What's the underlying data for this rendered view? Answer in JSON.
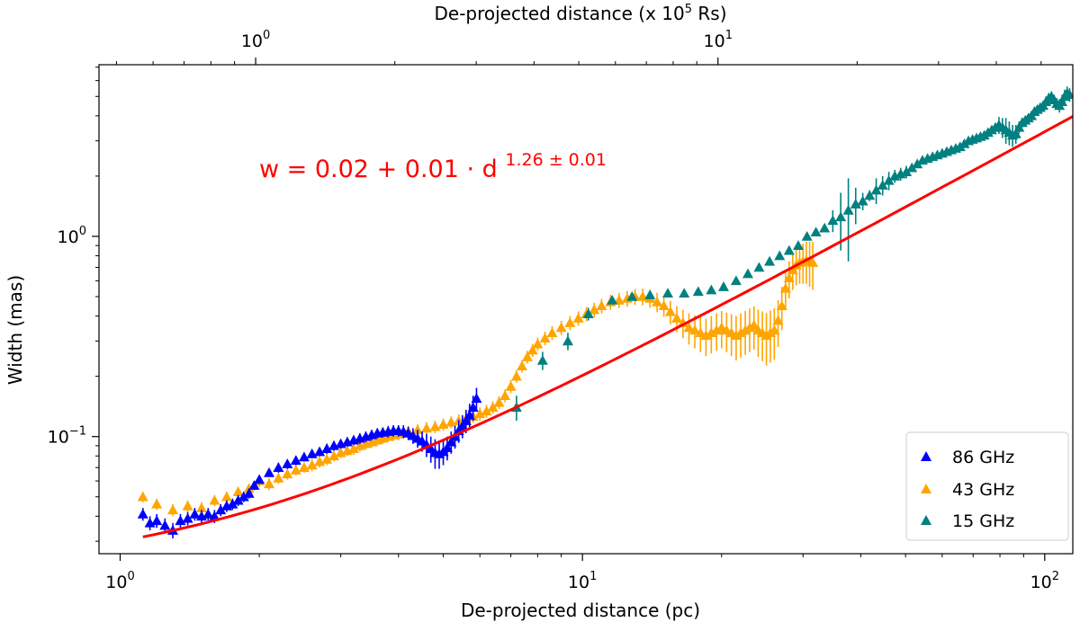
{
  "chart_data": {
    "type": "scatter",
    "xscale": "log",
    "yscale": "log",
    "xlim": [
      0.9,
      115
    ],
    "ylim": [
      0.026,
      7.2
    ],
    "xlabel": "De-projected distance (pc)",
    "ylabel": "Width (mas)",
    "top_axis": {
      "label_prefix": "De-projected distance (x 10",
      "label_sup": "5",
      "label_suffix": " Rs)",
      "ticks": [
        {
          "label": "10",
          "exp": "0",
          "pc": 1.964
        },
        {
          "label": "10",
          "exp": "1",
          "pc": 19.64
        }
      ]
    },
    "x_ticks": [
      {
        "value": 1,
        "label": "10",
        "exp": "0"
      },
      {
        "value": 10,
        "label": "10",
        "exp": "1"
      },
      {
        "value": 100,
        "label": "10",
        "exp": "2"
      }
    ],
    "y_ticks": [
      {
        "value": 0.1,
        "label": "10",
        "exp": "−1"
      },
      {
        "value": 1,
        "label": "10",
        "exp": "0"
      }
    ],
    "equation": {
      "main": "w =  0.02 +  0.01 · d ",
      "exponent": "1.26 ± 0.01"
    },
    "legend": {
      "position": "lower-right",
      "entries": [
        {
          "label": "86 GHz",
          "color": "#0000ff"
        },
        {
          "label": "43 GHz",
          "color": "#ffa500"
        },
        {
          "label": "15 GHz",
          "color": "#008080"
        }
      ]
    },
    "fit": {
      "a": 0.02,
      "b": 0.01,
      "k": 1.26,
      "x_range": [
        1.12,
        115
      ],
      "color": "#ff0000"
    },
    "series": [
      {
        "name": "86 GHz",
        "color": "#0000ff",
        "x": [
          1.12,
          1.16,
          1.2,
          1.25,
          1.3,
          1.35,
          1.4,
          1.45,
          1.5,
          1.55,
          1.6,
          1.65,
          1.7,
          1.75,
          1.8,
          1.85,
          1.9,
          1.95,
          2.0,
          2.1,
          2.2,
          2.3,
          2.4,
          2.5,
          2.6,
          2.7,
          2.8,
          2.9,
          3.0,
          3.1,
          3.2,
          3.3,
          3.4,
          3.5,
          3.6,
          3.7,
          3.8,
          3.9,
          4.0,
          4.1,
          4.2,
          4.3,
          4.4,
          4.5,
          4.6,
          4.7,
          4.8,
          4.9,
          5.0,
          5.1,
          5.2,
          5.3,
          5.4,
          5.5,
          5.6,
          5.7,
          5.8,
          5.9
        ],
        "y": [
          0.041,
          0.037,
          0.038,
          0.036,
          0.034,
          0.038,
          0.039,
          0.041,
          0.04,
          0.041,
          0.04,
          0.043,
          0.045,
          0.046,
          0.048,
          0.05,
          0.052,
          0.057,
          0.061,
          0.066,
          0.07,
          0.073,
          0.076,
          0.079,
          0.082,
          0.084,
          0.087,
          0.09,
          0.092,
          0.094,
          0.096,
          0.098,
          0.1,
          0.102,
          0.104,
          0.105,
          0.106,
          0.107,
          0.107,
          0.106,
          0.104,
          0.101,
          0.098,
          0.095,
          0.091,
          0.087,
          0.083,
          0.082,
          0.084,
          0.088,
          0.094,
          0.1,
          0.107,
          0.113,
          0.12,
          0.128,
          0.14,
          0.155
        ],
        "err": [
          0.003,
          0.003,
          0.003,
          0.003,
          0.003,
          0.003,
          0.003,
          0.003,
          0.003,
          0.003,
          0.003,
          0.003,
          0.003,
          0.003,
          0.003,
          0.003,
          0.003,
          0.003,
          0.003,
          0.003,
          0.004,
          0.004,
          0.004,
          0.004,
          0.004,
          0.004,
          0.005,
          0.005,
          0.005,
          0.005,
          0.005,
          0.006,
          0.006,
          0.006,
          0.006,
          0.006,
          0.007,
          0.007,
          0.007,
          0.008,
          0.008,
          0.009,
          0.01,
          0.011,
          0.012,
          0.013,
          0.014,
          0.013,
          0.012,
          0.012,
          0.012,
          0.013,
          0.014,
          0.015,
          0.016,
          0.018,
          0.02,
          0.02
        ]
      },
      {
        "name": "43 GHz",
        "color": "#ffa500",
        "x": [
          1.12,
          1.2,
          1.3,
          1.4,
          1.5,
          1.6,
          1.7,
          1.8,
          1.9,
          2.0,
          2.1,
          2.2,
          2.3,
          2.4,
          2.5,
          2.6,
          2.7,
          2.8,
          2.9,
          3.0,
          3.1,
          3.2,
          3.3,
          3.4,
          3.5,
          3.6,
          3.7,
          3.8,
          3.9,
          4.0,
          4.2,
          4.4,
          4.6,
          4.8,
          5.0,
          5.2,
          5.4,
          5.6,
          5.8,
          6.0,
          6.2,
          6.4,
          6.6,
          6.8,
          7.0,
          7.2,
          7.4,
          7.6,
          7.8,
          8.0,
          8.3,
          8.6,
          9.0,
          9.4,
          9.8,
          10.2,
          10.6,
          11.0,
          11.5,
          12.0,
          12.5,
          13.0,
          13.5,
          14.0,
          14.5,
          15.0,
          15.5,
          16.0,
          16.5,
          17.0,
          17.5,
          18.0,
          18.5,
          19.0,
          19.5,
          20.0,
          20.5,
          21.0,
          21.5,
          22.0,
          22.5,
          23.0,
          23.5,
          24.0,
          24.5,
          25.0,
          25.5,
          26.0,
          26.5,
          27.0,
          27.5,
          28.0,
          28.5,
          29.0,
          29.5,
          30.0,
          30.5,
          31.0,
          31.5
        ],
        "y": [
          0.05,
          0.046,
          0.043,
          0.045,
          0.044,
          0.048,
          0.05,
          0.053,
          0.055,
          0.06,
          0.058,
          0.062,
          0.065,
          0.068,
          0.07,
          0.072,
          0.075,
          0.077,
          0.08,
          0.083,
          0.085,
          0.087,
          0.09,
          0.092,
          0.094,
          0.096,
          0.098,
          0.1,
          0.102,
          0.103,
          0.106,
          0.108,
          0.11,
          0.112,
          0.115,
          0.118,
          0.12,
          0.123,
          0.126,
          0.13,
          0.134,
          0.14,
          0.148,
          0.16,
          0.178,
          0.2,
          0.225,
          0.25,
          0.27,
          0.29,
          0.31,
          0.33,
          0.35,
          0.37,
          0.39,
          0.41,
          0.43,
          0.45,
          0.47,
          0.48,
          0.49,
          0.5,
          0.5,
          0.49,
          0.47,
          0.45,
          0.42,
          0.39,
          0.37,
          0.35,
          0.34,
          0.33,
          0.32,
          0.33,
          0.34,
          0.35,
          0.34,
          0.33,
          0.32,
          0.33,
          0.34,
          0.35,
          0.36,
          0.34,
          0.33,
          0.32,
          0.33,
          0.34,
          0.38,
          0.45,
          0.55,
          0.62,
          0.68,
          0.72,
          0.74,
          0.75,
          0.76,
          0.75,
          0.74
        ],
        "err": [
          0.003,
          0.003,
          0.003,
          0.003,
          0.003,
          0.003,
          0.003,
          0.003,
          0.003,
          0.004,
          0.004,
          0.004,
          0.004,
          0.004,
          0.004,
          0.005,
          0.005,
          0.005,
          0.005,
          0.005,
          0.005,
          0.006,
          0.006,
          0.006,
          0.006,
          0.006,
          0.006,
          0.006,
          0.007,
          0.007,
          0.007,
          0.007,
          0.008,
          0.008,
          0.008,
          0.008,
          0.009,
          0.009,
          0.009,
          0.01,
          0.01,
          0.01,
          0.011,
          0.012,
          0.013,
          0.014,
          0.016,
          0.018,
          0.02,
          0.022,
          0.024,
          0.026,
          0.028,
          0.03,
          0.032,
          0.034,
          0.036,
          0.038,
          0.04,
          0.042,
          0.044,
          0.046,
          0.048,
          0.05,
          0.052,
          0.054,
          0.056,
          0.058,
          0.06,
          0.062,
          0.064,
          0.066,
          0.068,
          0.07,
          0.072,
          0.074,
          0.076,
          0.078,
          0.08,
          0.082,
          0.084,
          0.086,
          0.088,
          0.09,
          0.092,
          0.094,
          0.096,
          0.098,
          0.1,
          0.11,
          0.12,
          0.13,
          0.14,
          0.15,
          0.16,
          0.17,
          0.18,
          0.19,
          0.2
        ]
      },
      {
        "name": "15 GHz",
        "color": "#008080",
        "x": [
          7.2,
          8.2,
          9.3,
          10.3,
          11.6,
          12.8,
          14.0,
          15.3,
          16.6,
          17.8,
          19.0,
          20.2,
          21.5,
          22.8,
          24.1,
          25.4,
          26.7,
          28.0,
          29.3,
          30.6,
          32.0,
          33.4,
          34.8,
          36.2,
          37.6,
          39.0,
          40.4,
          41.8,
          43.2,
          44.6,
          46.0,
          47.4,
          48.8,
          50.2,
          51.6,
          53.0,
          54.4,
          55.8,
          57.2,
          58.6,
          60.0,
          61.4,
          62.8,
          64.2,
          65.6,
          67.0,
          68.4,
          69.8,
          71.2,
          72.6,
          74.0,
          75.4,
          76.8,
          78.2,
          79.6,
          81.0,
          82.4,
          83.8,
          85.2,
          86.6,
          88.0,
          89.4,
          90.8,
          92.2,
          93.6,
          95.0,
          96.4,
          97.8,
          99.2,
          100.6,
          102.0,
          103.4,
          104.8,
          106.2,
          107.6,
          109.0,
          110.4,
          111.8,
          113.2
        ],
        "y": [
          0.14,
          0.24,
          0.3,
          0.41,
          0.48,
          0.5,
          0.51,
          0.52,
          0.52,
          0.53,
          0.54,
          0.56,
          0.6,
          0.65,
          0.7,
          0.75,
          0.8,
          0.85,
          0.9,
          1.0,
          1.05,
          1.1,
          1.2,
          1.25,
          1.35,
          1.45,
          1.5,
          1.6,
          1.7,
          1.8,
          1.9,
          2.0,
          2.05,
          2.1,
          2.2,
          2.3,
          2.4,
          2.45,
          2.5,
          2.55,
          2.6,
          2.65,
          2.7,
          2.75,
          2.8,
          2.9,
          3.0,
          3.05,
          3.1,
          3.15,
          3.2,
          3.3,
          3.4,
          3.5,
          3.6,
          3.5,
          3.4,
          3.3,
          3.2,
          3.25,
          3.5,
          3.7,
          3.8,
          3.9,
          4.0,
          4.2,
          4.3,
          4.4,
          4.5,
          4.7,
          4.9,
          5.0,
          4.8,
          4.6,
          4.5,
          4.7,
          5.0,
          5.2,
          5.1
        ],
        "err": [
          0.02,
          0.025,
          0.03,
          0.03,
          0.02,
          0.02,
          0.02,
          0.02,
          0.02,
          0.02,
          0.02,
          0.02,
          0.02,
          0.02,
          0.02,
          0.02,
          0.02,
          0.03,
          0.03,
          0.03,
          0.03,
          0.05,
          0.15,
          0.4,
          0.6,
          0.3,
          0.15,
          0.1,
          0.25,
          0.2,
          0.2,
          0.15,
          0.15,
          0.15,
          0.1,
          0.1,
          0.1,
          0.1,
          0.08,
          0.08,
          0.08,
          0.08,
          0.08,
          0.08,
          0.08,
          0.08,
          0.08,
          0.08,
          0.08,
          0.08,
          0.08,
          0.1,
          0.12,
          0.15,
          0.35,
          0.4,
          0.5,
          0.45,
          0.4,
          0.35,
          0.25,
          0.2,
          0.2,
          0.2,
          0.2,
          0.2,
          0.2,
          0.2,
          0.25,
          0.3,
          0.3,
          0.3,
          0.3,
          0.3,
          0.35,
          0.4,
          0.4,
          0.4,
          0.4
        ]
      }
    ]
  }
}
